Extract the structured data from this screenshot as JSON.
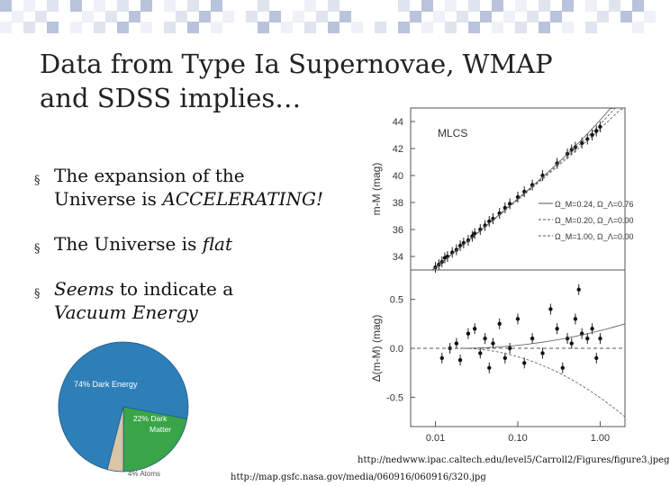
{
  "slide": {
    "title_lines": [
      "Data from Type Ia Supernovae, WMAP",
      "and SDSS implies…"
    ],
    "bullets": [
      {
        "pre": "The expansion of the",
        "cont_pre": "Universe is ",
        "em": "ACCELERATING!",
        "post": ""
      },
      {
        "pre": "The Universe is ",
        "em": "flat",
        "post": ""
      },
      {
        "em": "Seems",
        "post": " to indicate a",
        "cont_em": "Vacuum Energy"
      }
    ],
    "bullet_marker": "§",
    "credits": [
      "http://nedwww.ipac.caltech.edu/level5/Carroll2/Figures/figure3.jpeg",
      "http://map.gsfc.nasa.gov/media/060916/060916/320.jpg"
    ]
  },
  "pie": {
    "slices": [
      {
        "label": "74% Dark Energy",
        "value": 74,
        "color": "#2e7fb8"
      },
      {
        "label_lines": [
          "22% Dark",
          "Matter"
        ],
        "value": 22,
        "color": "#3aa548"
      },
      {
        "label": "4% Atoms",
        "value": 4,
        "color": "#d9c4a8"
      }
    ]
  },
  "chart_data": [
    {
      "type": "scatter",
      "panel": "top",
      "annotation": "MLCS",
      "ylabel": "m-M (mag)",
      "yticks": [
        "34",
        "36",
        "38",
        "40",
        "42",
        "44"
      ],
      "ylim": [
        33,
        45
      ],
      "xscale": "log",
      "xlim": [
        0.005,
        2
      ],
      "legend": [
        "Ω_M=0.24, Ω_Λ=0.76",
        "Ω_M=0.20, Ω_Λ=0.00",
        "Ω_M=1.00, Ω_Λ=0.00"
      ],
      "points": [
        [
          0.01,
          33.2
        ],
        [
          0.011,
          33.4
        ],
        [
          0.012,
          33.6
        ],
        [
          0.013,
          33.9
        ],
        [
          0.014,
          34.0
        ],
        [
          0.016,
          34.3
        ],
        [
          0.018,
          34.5
        ],
        [
          0.02,
          34.8
        ],
        [
          0.022,
          35.0
        ],
        [
          0.025,
          35.2
        ],
        [
          0.028,
          35.5
        ],
        [
          0.03,
          35.7
        ],
        [
          0.035,
          36.0
        ],
        [
          0.04,
          36.3
        ],
        [
          0.045,
          36.6
        ],
        [
          0.05,
          36.8
        ],
        [
          0.06,
          37.2
        ],
        [
          0.07,
          37.6
        ],
        [
          0.08,
          37.9
        ],
        [
          0.1,
          38.4
        ],
        [
          0.12,
          38.8
        ],
        [
          0.15,
          39.3
        ],
        [
          0.2,
          40.0
        ],
        [
          0.3,
          40.9
        ],
        [
          0.4,
          41.6
        ],
        [
          0.45,
          41.9
        ],
        [
          0.5,
          42.1
        ],
        [
          0.6,
          42.4
        ],
        [
          0.7,
          42.7
        ],
        [
          0.8,
          43.0
        ],
        [
          0.9,
          43.3
        ],
        [
          1.0,
          43.6
        ]
      ]
    },
    {
      "type": "scatter",
      "panel": "bottom",
      "ylabel": "Δ(m-M) (mag)",
      "yticks": [
        "-0.5",
        "0.0",
        "0.5"
      ],
      "ylim": [
        -0.8,
        0.8
      ],
      "xscale": "log",
      "xlim": [
        0.005,
        2
      ],
      "xticks": [
        "0.01",
        "0.10",
        "1.00"
      ],
      "points": [
        [
          0.012,
          -0.1
        ],
        [
          0.015,
          0.0
        ],
        [
          0.018,
          0.05
        ],
        [
          0.02,
          -0.12
        ],
        [
          0.025,
          0.15
        ],
        [
          0.03,
          0.2
        ],
        [
          0.035,
          -0.05
        ],
        [
          0.04,
          0.1
        ],
        [
          0.045,
          -0.2
        ],
        [
          0.05,
          0.05
        ],
        [
          0.06,
          0.25
        ],
        [
          0.07,
          -0.1
        ],
        [
          0.08,
          0.0
        ],
        [
          0.1,
          0.3
        ],
        [
          0.12,
          -0.15
        ],
        [
          0.15,
          0.1
        ],
        [
          0.2,
          -0.05
        ],
        [
          0.25,
          0.4
        ],
        [
          0.3,
          0.2
        ],
        [
          0.35,
          -0.2
        ],
        [
          0.4,
          0.1
        ],
        [
          0.45,
          0.05
        ],
        [
          0.5,
          0.3
        ],
        [
          0.55,
          0.6
        ],
        [
          0.6,
          0.15
        ],
        [
          0.7,
          0.1
        ],
        [
          0.8,
          0.2
        ],
        [
          0.9,
          -0.1
        ],
        [
          1.0,
          0.1
        ]
      ]
    }
  ]
}
